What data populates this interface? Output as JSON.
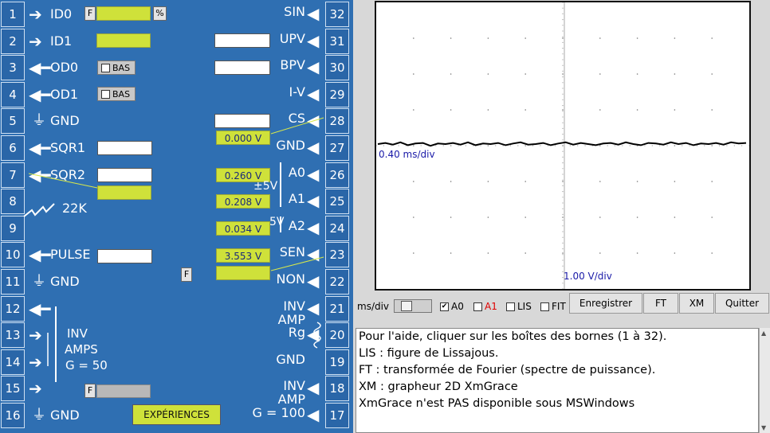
{
  "pins_left": [
    {
      "num": "1",
      "label": "ID0",
      "dir": "in"
    },
    {
      "num": "2",
      "label": "ID1",
      "dir": "in"
    },
    {
      "num": "3",
      "label": "OD0",
      "dir": "out"
    },
    {
      "num": "4",
      "label": "OD1",
      "dir": "out"
    },
    {
      "num": "5",
      "label": "GND",
      "dir": "gnd"
    },
    {
      "num": "6",
      "label": "SQR1",
      "dir": "out"
    },
    {
      "num": "7",
      "label": "SQR2",
      "dir": "out"
    },
    {
      "num": "8",
      "label": "22K",
      "dir": "res"
    },
    {
      "num": "9",
      "label": "",
      "dir": "none"
    },
    {
      "num": "10",
      "label": "PULSE",
      "dir": "out"
    },
    {
      "num": "11",
      "label": "GND",
      "dir": "gnd"
    },
    {
      "num": "12",
      "label": "",
      "dir": "out"
    },
    {
      "num": "13",
      "label": "",
      "dir": "in"
    },
    {
      "num": "14",
      "label": "",
      "dir": "in"
    },
    {
      "num": "15",
      "label": "",
      "dir": "in"
    },
    {
      "num": "16",
      "label": "GND",
      "dir": "gnd"
    }
  ],
  "pins_right": [
    {
      "num": "32",
      "label": "SIN"
    },
    {
      "num": "31",
      "label": "UPV"
    },
    {
      "num": "30",
      "label": "BPV"
    },
    {
      "num": "29",
      "label": "I-V"
    },
    {
      "num": "28",
      "label": "CS"
    },
    {
      "num": "27",
      "label": "GND"
    },
    {
      "num": "26",
      "label": "A0"
    },
    {
      "num": "25",
      "label": "A1"
    },
    {
      "num": "24",
      "label": "A2"
    },
    {
      "num": "23",
      "label": "SEN"
    },
    {
      "num": "22",
      "label": "NON"
    },
    {
      "num": "21",
      "label": "INV\nAMP"
    },
    {
      "num": "20",
      "label": "Rg\n\nGND"
    },
    {
      "num": "19",
      "label": ""
    },
    {
      "num": "18",
      "label": "INV\nAMP"
    },
    {
      "num": "17",
      "label": "G = 100"
    }
  ],
  "board_text": {
    "inv_amps": "INV",
    "amps": "AMPS",
    "gain50": "G = 50",
    "pm5v": "±5V",
    "f_label": "F",
    "percent": "%",
    "bas": "BAS",
    "five_v": "5V"
  },
  "voltages": {
    "v27": "0.000 V",
    "v26": "0.260 V",
    "v25": "0.208 V",
    "v24": "0.034 V",
    "v23": "3.553 V"
  },
  "experiences_button": "EXPÉRIENCES",
  "scope": {
    "time_div": "0.40 ms/div",
    "volt_div": "1.00 V/div",
    "trace": [
      0.0,
      0.02,
      -0.01,
      0.03,
      -0.02,
      0.01,
      0.02,
      -0.03,
      0.01,
      0.0,
      0.02,
      -0.01,
      0.03,
      -0.02,
      0.01,
      0.0,
      0.02,
      -0.02,
      0.01,
      0.03,
      -0.01,
      0.0,
      0.02,
      -0.02,
      0.01,
      0.03,
      -0.01,
      0.02,
      0.0,
      -0.02,
      0.01,
      0.02,
      -0.01,
      0.03,
      0.0,
      -0.02,
      0.02,
      0.01,
      -0.01,
      0.03,
      0.0,
      0.02,
      -0.02,
      0.01,
      0.0,
      0.02,
      -0.01,
      0.03,
      0.01,
      0.02
    ]
  },
  "controls": {
    "ms_div": "ms/div",
    "a0": "A0",
    "a1": "A1",
    "lis": "LIS",
    "fit": "FIT",
    "enregistrer": "Enregistrer",
    "ft": "FT",
    "xm": "XM",
    "quitter": "Quitter",
    "a1_color": "#e00000"
  },
  "help_lines": [
    "Pour l'aide, cliquer sur les boîtes des bornes (1 à 32).",
    "LIS : figure de Lissajous.",
    "FT : transformée de Fourier (spectre de puissance).",
    "XM : grapheur 2D XmGrace",
    "XmGrace n'est PAS disponible sous MSWindows"
  ]
}
